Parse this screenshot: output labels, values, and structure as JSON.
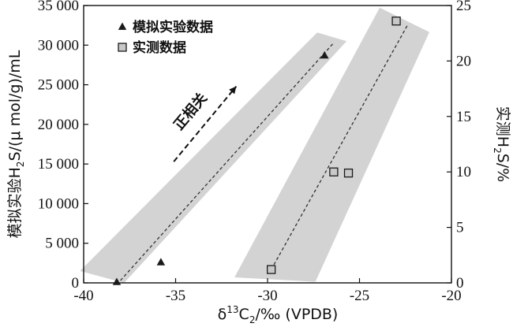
{
  "chart_data": {
    "type": "scatter",
    "xlabel": "δ13C2/‰ (VPDB)",
    "xlabel_parts": {
      "delta": "δ",
      "sup": "13",
      "base": "C",
      "sub": "2",
      "rest": "/‰ (VPDB)"
    },
    "ylabel_left": "模拟实验H2S/(μ mol/g)/mL",
    "ylabel_left_parts": {
      "pre": "模拟实验H",
      "sub": "2",
      "rest": "S/(μ mol/g)/mL"
    },
    "ylabel_right": "实测H2S/%",
    "ylabel_right_parts": {
      "pre": "实测H",
      "sub": "2",
      "rest": "S/%"
    },
    "xlim": [
      -40,
      -20
    ],
    "ylim_left": [
      0,
      35000
    ],
    "ylim_right": [
      0,
      25
    ],
    "x_ticks": [
      -40,
      -35,
      -30,
      -25,
      -20
    ],
    "x_tick_labels": [
      "-40",
      "-35",
      "-30",
      "-25",
      "-20"
    ],
    "y_left_ticks": [
      0,
      5000,
      10000,
      15000,
      20000,
      25000,
      30000,
      35000
    ],
    "y_left_tick_labels": [
      "0",
      "5 000",
      "10 000",
      "15 000",
      "20 000",
      "25 000",
      "30 000",
      "35 000"
    ],
    "y_right_ticks": [
      0,
      5,
      10,
      15,
      20,
      25
    ],
    "y_right_tick_labels": [
      "0",
      "5",
      "10",
      "15",
      "20",
      "25"
    ],
    "grid": false,
    "legend_position": "top-left",
    "series": [
      {
        "name": "模拟实验数据",
        "marker": "triangle",
        "axis": "left",
        "points": [
          [
            -38.2,
            100
          ],
          [
            -35.8,
            2600
          ],
          [
            -26.9,
            28700
          ]
        ]
      },
      {
        "name": "实测数据",
        "marker": "square",
        "axis": "right",
        "points": [
          [
            -29.8,
            1.2
          ],
          [
            -26.4,
            10.0
          ],
          [
            -25.6,
            9.9
          ],
          [
            -23.0,
            23.6
          ]
        ]
      }
    ],
    "trend_lines": [
      {
        "axis": "left",
        "from": [
          -38.0,
          300
        ],
        "to": [
          -26.4,
          30300
        ]
      },
      {
        "axis": "right",
        "from": [
          -29.8,
          1.2
        ],
        "to": [
          -22.4,
          23.2
        ]
      }
    ],
    "confidence_bands": [
      {
        "axis": "left",
        "polygon": [
          [
            -40.2,
            1500
          ],
          [
            -37.8,
            0
          ],
          [
            -25.7,
            30500
          ],
          [
            -27.3,
            31600
          ]
        ]
      },
      {
        "axis": "right",
        "polygon": [
          [
            -31.8,
            0.5
          ],
          [
            -27.4,
            0.1
          ],
          [
            -21.2,
            22.6
          ],
          [
            -23.9,
            24.8
          ]
        ]
      }
    ],
    "annotation": {
      "text": "正相关",
      "arrow_from": [
        -35.1,
        15300
      ],
      "arrow_to": [
        -31.7,
        24800
      ]
    },
    "colors": {
      "band": "#d3d3d3",
      "marker": "#1a1a1a",
      "square_fill": "#c8c8c8"
    }
  }
}
